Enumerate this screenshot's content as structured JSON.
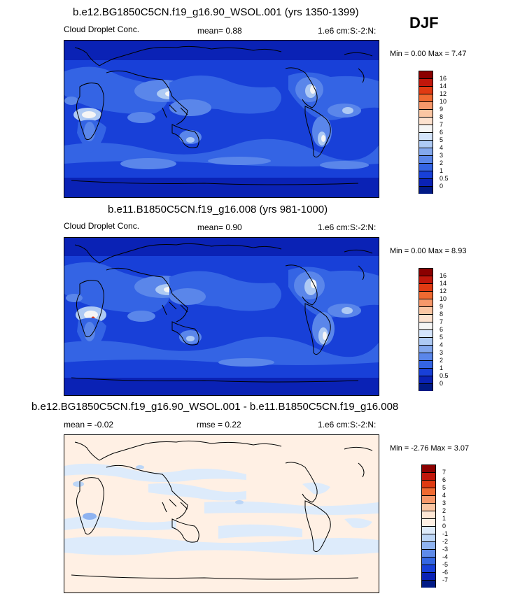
{
  "season": "DJF",
  "panels": [
    {
      "title": "b.e12.BG1850C5CN.f19_g16.90_WSOL.001 (yrs 1350-1399)",
      "left_label": "Cloud Droplet Conc.",
      "mid_label": "mean=   0.88",
      "right_label": "1.e6 cm:S:-2:N:",
      "minmax": "Min =   0.00 Max =   7.47",
      "colorbar": {
        "labels": [
          "16",
          "14",
          "12",
          "10",
          "9",
          "8",
          "7",
          "6",
          "5",
          "4",
          "3",
          "2",
          "1",
          "0.5",
          "0"
        ],
        "colors": [
          "#8b0000",
          "#c1170b",
          "#e03a12",
          "#f06a31",
          "#f7986a",
          "#fbc6a3",
          "#fde2cf",
          "#f5f5f5",
          "#d4e4fb",
          "#aecaf4",
          "#83a8ee",
          "#5a86ea",
          "#3464e4",
          "#1840d8",
          "#0a22b5",
          "#011a86"
        ]
      }
    },
    {
      "title": "b.e11.B1850C5CN.f19_g16.008 (yrs 981-1000)",
      "left_label": "Cloud Droplet Conc.",
      "mid_label": "mean=   0.90",
      "right_label": "1.e6 cm:S:-2:N:",
      "minmax": "Min =   0.00 Max =   8.93",
      "colorbar": {
        "labels": [
          "16",
          "14",
          "12",
          "10",
          "9",
          "8",
          "7",
          "6",
          "5",
          "4",
          "3",
          "2",
          "1",
          "0.5",
          "0"
        ],
        "colors": [
          "#8b0000",
          "#c1170b",
          "#e03a12",
          "#f06a31",
          "#f7986a",
          "#fbc6a3",
          "#fde2cf",
          "#f5f5f5",
          "#d4e4fb",
          "#aecaf4",
          "#83a8ee",
          "#5a86ea",
          "#3464e4",
          "#1840d8",
          "#0a22b5",
          "#011a86"
        ]
      }
    },
    {
      "title": "b.e12.BG1850C5CN.f19_g16.90_WSOL.001 - b.e11.B1850C5CN.f19_g16.008",
      "left_label": "mean =  -0.02",
      "mid_label": "rmse =   0.22",
      "right_label": "1.e6 cm:S:-2:N:",
      "minmax": "Min =  -2.76 Max =   3.07",
      "colorbar": {
        "labels": [
          "7",
          "6",
          "5",
          "4",
          "3",
          "2",
          "1",
          "0",
          "-1",
          "-2",
          "-3",
          "-4",
          "-5",
          "-6",
          "-7"
        ],
        "colors": [
          "#8b0000",
          "#c1170b",
          "#e03a12",
          "#f06a31",
          "#f7986a",
          "#fbc6a3",
          "#fde6d4",
          "#fff0e4",
          "#ddebfb",
          "#bcd6f7",
          "#8fb3f0",
          "#5f8be9",
          "#3567e2",
          "#1840d8",
          "#0a22b5",
          "#011a86"
        ]
      }
    }
  ]
}
